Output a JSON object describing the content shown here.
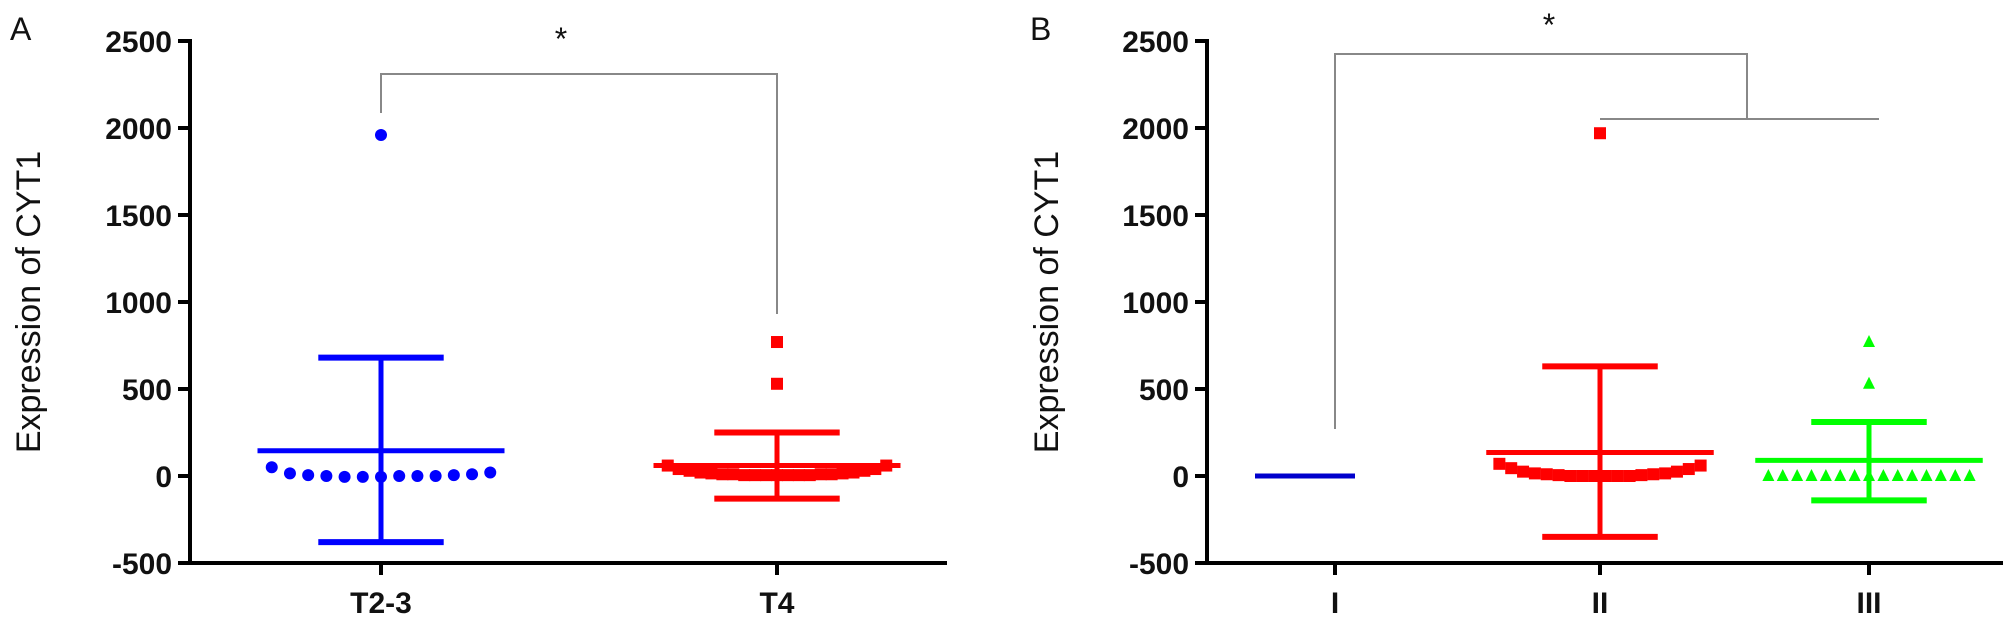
{
  "chart_data": [
    {
      "type": "scatter",
      "panel_label": "A",
      "ylabel": "Expression of CYT1",
      "xlabel": "",
      "ylim": [
        -500,
        2500
      ],
      "yticks": [
        -500,
        0,
        500,
        1000,
        1500,
        2000,
        2500
      ],
      "categories": [
        "T2-3",
        "T4"
      ],
      "grid": false,
      "significance": [
        {
          "from": "T2-3",
          "to": "T4",
          "label": "*"
        }
      ],
      "groups": [
        {
          "category": "T2-3",
          "color": "#0000ff",
          "marker": "circle",
          "mean": 145,
          "sd_upper": 680,
          "sd_lower": -380,
          "values": [
            1960,
            50,
            15,
            5,
            0,
            -5,
            -5,
            -5,
            0,
            0,
            0,
            5,
            10,
            20
          ]
        },
        {
          "category": "T4",
          "color": "#ff0000",
          "marker": "square",
          "mean": 60,
          "sd_upper": 250,
          "sd_lower": -130,
          "values": [
            770,
            530,
            60,
            40,
            30,
            20,
            15,
            10,
            10,
            5,
            5,
            5,
            5,
            5,
            5,
            5,
            10,
            10,
            15,
            20,
            30,
            40,
            60
          ]
        }
      ]
    },
    {
      "type": "scatter",
      "panel_label": "B",
      "ylabel": "Expression of CYT1",
      "xlabel": "",
      "ylim": [
        -500,
        2500
      ],
      "yticks": [
        -500,
        0,
        500,
        1000,
        1500,
        2000,
        2500
      ],
      "categories": [
        "I",
        "II",
        "III"
      ],
      "grid": false,
      "significance": [
        {
          "from": "I",
          "to": "II+III",
          "label": "*"
        }
      ],
      "groups": [
        {
          "category": "I",
          "color": "#0000cc",
          "marker": "circle",
          "mean": 0,
          "sd_upper": 5,
          "sd_lower": -5,
          "values": [
            0,
            0,
            0,
            5,
            5,
            10
          ]
        },
        {
          "category": "II",
          "color": "#ff0000",
          "marker": "square",
          "mean": 135,
          "sd_upper": 630,
          "sd_lower": -350,
          "values": [
            1970,
            70,
            45,
            25,
            15,
            10,
            5,
            0,
            0,
            0,
            0,
            0,
            0,
            5,
            10,
            15,
            25,
            40,
            60
          ]
        },
        {
          "category": "III",
          "color": "#00ff00",
          "marker": "triangle",
          "mean": 90,
          "sd_upper": 310,
          "sd_lower": -140,
          "values": [
            770,
            530,
            0,
            0,
            0,
            0,
            0,
            0,
            0,
            0,
            0,
            0,
            0,
            0,
            0,
            0,
            0
          ]
        }
      ]
    }
  ]
}
